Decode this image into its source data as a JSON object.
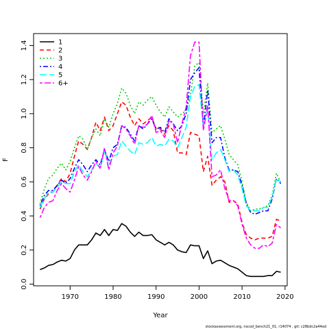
{
  "chart_data": {
    "type": "line",
    "xlabel": "Year",
    "ylabel": "F",
    "xlim": [
      1961.5,
      2020.5
    ],
    "ylim": [
      -0.01,
      1.47
    ],
    "x_ticks": [
      1970,
      1980,
      1990,
      2000,
      2010,
      2020
    ],
    "y_ticks": [
      0.0,
      0.2,
      0.4,
      0.6,
      0.8,
      1.0,
      1.2,
      1.4
    ],
    "y_tick_labels": [
      "0.0",
      "0.2",
      "0.4",
      "0.6",
      "0.8",
      "1.0",
      "1.2",
      "1.4"
    ],
    "legend_position": "top-left",
    "footer": "stockassessment.org, nscod_bench21_01, r14074 , git: c28bdc2a44ad",
    "x": [
      1963,
      1964,
      1965,
      1966,
      1967,
      1968,
      1969,
      1970,
      1971,
      1972,
      1973,
      1974,
      1975,
      1976,
      1977,
      1978,
      1979,
      1980,
      1981,
      1982,
      1983,
      1984,
      1985,
      1986,
      1987,
      1988,
      1989,
      1990,
      1991,
      1992,
      1993,
      1994,
      1995,
      1996,
      1997,
      1998,
      1999,
      2000,
      2001,
      2002,
      2003,
      2004,
      2005,
      2006,
      2007,
      2008,
      2009,
      2010,
      2011,
      2012,
      2013,
      2014,
      2015,
      2016,
      2017,
      2018,
      2019
    ],
    "series": [
      {
        "name": "1",
        "color": "#000000",
        "dash": "solid",
        "values": [
          0.085,
          0.095,
          0.11,
          0.115,
          0.13,
          0.14,
          0.135,
          0.15,
          0.2,
          0.23,
          0.23,
          0.23,
          0.26,
          0.3,
          0.285,
          0.32,
          0.285,
          0.32,
          0.315,
          0.355,
          0.34,
          0.305,
          0.28,
          0.305,
          0.285,
          0.285,
          0.29,
          0.26,
          0.245,
          0.23,
          0.245,
          0.23,
          0.2,
          0.19,
          0.185,
          0.23,
          0.225,
          0.225,
          0.15,
          0.195,
          0.12,
          0.135,
          0.14,
          0.125,
          0.11,
          0.1,
          0.09,
          0.07,
          0.05,
          0.045,
          0.045,
          0.045,
          0.045,
          0.05,
          0.05,
          0.075,
          0.07
        ]
      },
      {
        "name": "2",
        "color": "#ff0000",
        "dash": "dashed",
        "values": [
          0.44,
          0.5,
          0.53,
          0.54,
          0.58,
          0.62,
          0.6,
          0.65,
          0.75,
          0.84,
          0.82,
          0.79,
          0.86,
          0.95,
          0.9,
          0.98,
          0.9,
          0.93,
          1.0,
          1.07,
          1.05,
          0.98,
          0.93,
          0.97,
          0.94,
          0.96,
          0.98,
          0.91,
          0.91,
          0.88,
          0.93,
          0.9,
          0.77,
          0.77,
          0.76,
          0.89,
          0.88,
          0.87,
          0.66,
          0.75,
          0.58,
          0.61,
          0.63,
          0.6,
          0.48,
          0.49,
          0.47,
          0.36,
          0.29,
          0.27,
          0.26,
          0.27,
          0.27,
          0.27,
          0.28,
          0.38,
          0.37
        ]
      },
      {
        "name": "3",
        "color": "#00cd00",
        "dash": "dotted",
        "values": [
          0.47,
          0.56,
          0.62,
          0.64,
          0.68,
          0.71,
          0.67,
          0.72,
          0.8,
          0.87,
          0.85,
          0.79,
          0.86,
          0.91,
          0.87,
          0.97,
          0.92,
          1.0,
          1.06,
          1.15,
          1.12,
          1.05,
          1.0,
          1.07,
          1.05,
          1.08,
          1.1,
          1.05,
          1.01,
          0.98,
          1.04,
          1.01,
          0.98,
          1.0,
          1.02,
          1.11,
          1.28,
          1.3,
          1.0,
          1.18,
          0.89,
          0.91,
          0.93,
          0.85,
          0.76,
          0.73,
          0.7,
          0.6,
          0.48,
          0.43,
          0.44,
          0.44,
          0.45,
          0.46,
          0.52,
          0.65,
          0.6
        ]
      },
      {
        "name": "4",
        "color": "#0000ff",
        "dash": "dashdot",
        "values": [
          0.46,
          0.52,
          0.55,
          0.55,
          0.58,
          0.61,
          0.59,
          0.62,
          0.68,
          0.73,
          0.7,
          0.66,
          0.7,
          0.73,
          0.7,
          0.79,
          0.72,
          0.8,
          0.82,
          0.93,
          0.92,
          0.88,
          0.84,
          0.93,
          0.91,
          0.94,
          0.97,
          0.91,
          0.92,
          0.89,
          0.97,
          0.94,
          0.9,
          0.93,
          1.0,
          1.2,
          1.24,
          1.27,
          0.92,
          1.14,
          0.83,
          0.86,
          0.86,
          0.74,
          0.67,
          0.67,
          0.66,
          0.58,
          0.47,
          0.42,
          0.41,
          0.42,
          0.43,
          0.43,
          0.5,
          0.62,
          0.59
        ]
      },
      {
        "name": "5",
        "color": "#00ffff",
        "dash": "longdash",
        "values": [
          0.45,
          0.5,
          0.54,
          0.54,
          0.57,
          0.6,
          0.59,
          0.59,
          0.66,
          0.7,
          0.66,
          0.63,
          0.67,
          0.71,
          0.68,
          0.78,
          0.7,
          0.75,
          0.76,
          0.84,
          0.81,
          0.78,
          0.76,
          0.83,
          0.82,
          0.83,
          0.86,
          0.81,
          0.82,
          0.81,
          0.85,
          0.84,
          0.8,
          0.86,
          0.92,
          1.1,
          1.16,
          1.17,
          0.92,
          1.02,
          0.73,
          0.77,
          0.79,
          0.73,
          0.66,
          0.67,
          0.64,
          0.56,
          0.46,
          0.43,
          0.43,
          0.43,
          0.45,
          0.45,
          0.51,
          0.62,
          0.6
        ]
      },
      {
        "name": "6+",
        "color": "#ff00ff",
        "dash": "twodash",
        "values": [
          0.39,
          0.45,
          0.48,
          0.49,
          0.55,
          0.59,
          0.56,
          0.54,
          0.61,
          0.69,
          0.64,
          0.61,
          0.66,
          0.72,
          0.68,
          0.8,
          0.67,
          0.77,
          0.81,
          0.93,
          0.91,
          0.87,
          0.82,
          0.93,
          0.92,
          0.94,
          0.99,
          0.89,
          0.9,
          0.86,
          0.96,
          0.94,
          0.83,
          0.94,
          1.04,
          1.34,
          1.42,
          1.42,
          0.9,
          1.05,
          0.63,
          0.64,
          0.67,
          0.56,
          0.49,
          0.49,
          0.46,
          0.35,
          0.27,
          0.23,
          0.21,
          0.21,
          0.23,
          0.22,
          0.24,
          0.35,
          0.33
        ]
      }
    ]
  }
}
